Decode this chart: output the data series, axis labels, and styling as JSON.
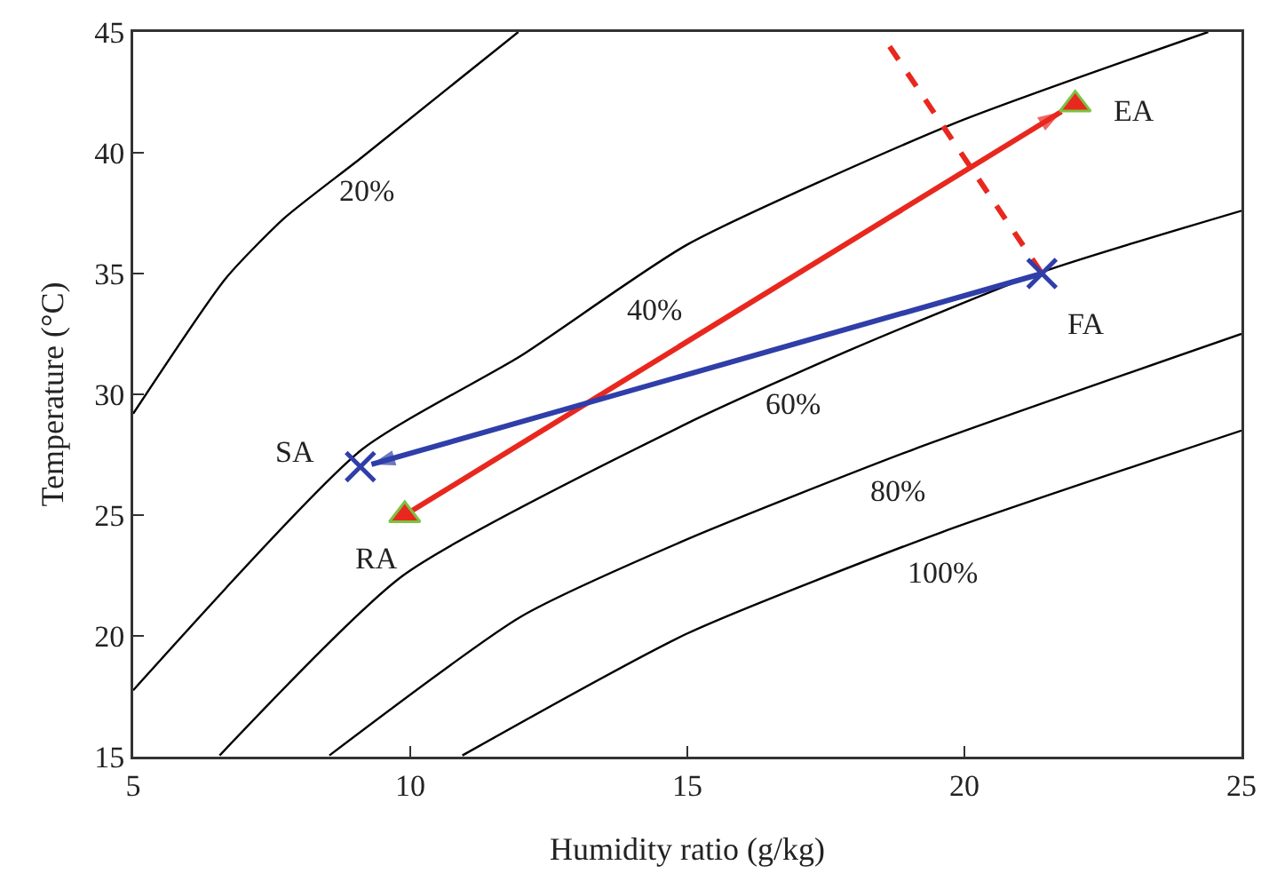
{
  "chart_data": {
    "type": "line",
    "xlabel": "Humidity ratio (g/kg)",
    "ylabel": "Temperature (°C)",
    "xlim": [
      5,
      25
    ],
    "xticks": [
      5,
      10,
      15,
      20,
      25
    ],
    "ylim": [
      15,
      45
    ],
    "yticks": [
      15,
      20,
      25,
      30,
      35,
      40,
      45
    ],
    "series": [
      {
        "color": "#000000",
        "x": [
          5.0,
          6.67,
          7.73,
          9.12,
          11.95
        ],
        "values": [
          29.2,
          34.8,
          37.3,
          39.8,
          45
        ]
      },
      {
        "color": "#000000",
        "x": [
          5.0,
          9.12,
          12.0,
          15.0,
          19.8,
          24.4
        ],
        "values": [
          17.75,
          27.7,
          31.6,
          36.2,
          41.2,
          45
        ]
      },
      {
        "color": "#000000",
        "x": [
          6.56,
          9.87,
          15.0,
          18.0,
          21.4,
          25.0
        ],
        "values": [
          15.05,
          22.5,
          28.8,
          31.9,
          35.06,
          37.6
        ]
      },
      {
        "color": "#000000",
        "x": [
          8.54,
          12.0,
          15.0,
          19.06,
          25.0
        ],
        "values": [
          15.05,
          20.8,
          24.0,
          27.7,
          32.5
        ]
      },
      {
        "color": "#000000",
        "x": [
          10.94,
          15.0,
          19.6,
          25.0
        ],
        "values": [
          15.05,
          20.1,
          24.3,
          28.5
        ]
      },
      {
        "type": "line",
        "color": "#e8281e",
        "x": [
          9.9,
          21.75
        ],
        "values": [
          25,
          41.7
        ],
        "line_style": "solid"
      },
      {
        "type": "line",
        "color": "#2f3ea8",
        "x": [
          21.4,
          9.3
        ],
        "values": [
          35,
          27.1
        ],
        "line_style": "solid"
      },
      {
        "type": "line",
        "color": "#e8281e",
        "x": [
          18.65,
          21.4
        ],
        "values": [
          44.4,
          35
        ],
        "line_style": "dashed"
      },
      {
        "type": "scatter",
        "color": "#2f3ea8",
        "x": [
          9.1,
          21.4
        ],
        "values": [
          27,
          35
        ],
        "marker": "cross"
      },
      {
        "type": "scatter",
        "color": "#e8281e",
        "x": [
          9.9,
          22.0
        ],
        "values": [
          25,
          42
        ],
        "marker": "triangle"
      }
    ],
    "annotations": [
      {
        "text": "20%",
        "x": 9.6,
        "y": 40.6
      },
      {
        "text": "40%",
        "x": 14.4,
        "y": 35.4
      },
      {
        "text": "60%",
        "x": 16.9,
        "y": 30.9
      },
      {
        "text": "80%",
        "x": 18.8,
        "y": 27.5
      },
      {
        "text": "100%",
        "x": 19.6,
        "y": 24.3
      },
      {
        "text": "SA",
        "x": 9.1,
        "y": 27
      },
      {
        "text": "RA",
        "x": 9.9,
        "y": 25
      },
      {
        "text": "FA",
        "x": 21.4,
        "y": 35
      },
      {
        "text": "EA",
        "x": 22.0,
        "y": 42
      }
    ]
  }
}
